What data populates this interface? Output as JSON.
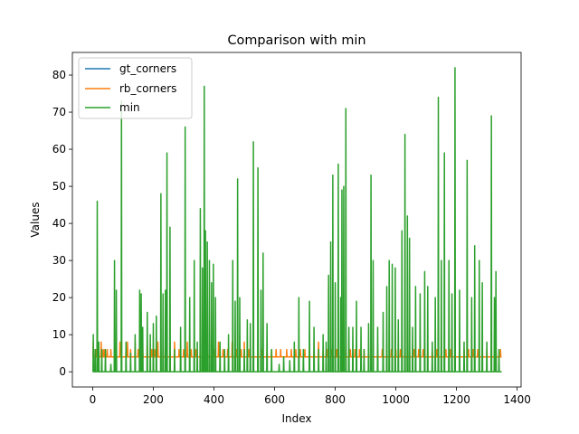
{
  "chart_data": {
    "type": "line",
    "title": "Comparison with min",
    "xlabel": "Index",
    "ylabel": "Values",
    "xlim": [
      -67,
      1413
    ],
    "ylim": [
      -4.1,
      86.1
    ],
    "xticks": [
      0,
      200,
      400,
      600,
      800,
      1000,
      1200,
      1400
    ],
    "yticks": [
      0,
      10,
      20,
      30,
      40,
      50,
      60,
      70,
      80
    ],
    "grid": false,
    "legend_position": "top-left",
    "series": [
      {
        "name": "gt_corners",
        "color": "#1f77b4",
        "n_points": 1350,
        "baseline": 4,
        "spikes": []
      },
      {
        "name": "rb_corners",
        "color": "#ff7f0e",
        "n_points": 1350,
        "baseline": 4,
        "spikes": [
          [
            2,
            8
          ],
          [
            10,
            6
          ],
          [
            20,
            6
          ],
          [
            28,
            8
          ],
          [
            35,
            6
          ],
          [
            40,
            6
          ],
          [
            48,
            6
          ],
          [
            60,
            6
          ],
          [
            75,
            6
          ],
          [
            90,
            8
          ],
          [
            110,
            6
          ],
          [
            115,
            8
          ],
          [
            125,
            6
          ],
          [
            140,
            8
          ],
          [
            150,
            6
          ],
          [
            165,
            6
          ],
          [
            180,
            8
          ],
          [
            195,
            6
          ],
          [
            205,
            6
          ],
          [
            215,
            8
          ],
          [
            225,
            6
          ],
          [
            240,
            8
          ],
          [
            255,
            6
          ],
          [
            270,
            8
          ],
          [
            285,
            6
          ],
          [
            300,
            6
          ],
          [
            312,
            8
          ],
          [
            325,
            6
          ],
          [
            340,
            6
          ],
          [
            355,
            8
          ],
          [
            370,
            6
          ],
          [
            385,
            8
          ],
          [
            400,
            6
          ],
          [
            415,
            8
          ],
          [
            430,
            6
          ],
          [
            445,
            6
          ],
          [
            460,
            8
          ],
          [
            475,
            6
          ],
          [
            490,
            6
          ],
          [
            500,
            8
          ],
          [
            515,
            6
          ],
          [
            530,
            6
          ],
          [
            545,
            8
          ],
          [
            560,
            6
          ],
          [
            575,
            6
          ],
          [
            590,
            6
          ],
          [
            605,
            6
          ],
          [
            620,
            6
          ],
          [
            640,
            6
          ],
          [
            655,
            6
          ],
          [
            670,
            6
          ],
          [
            685,
            6
          ],
          [
            700,
            6
          ],
          [
            715,
            6
          ],
          [
            730,
            6
          ],
          [
            745,
            8
          ],
          [
            760,
            6
          ],
          [
            775,
            6
          ],
          [
            790,
            6
          ],
          [
            805,
            6
          ],
          [
            820,
            6
          ],
          [
            835,
            8
          ],
          [
            850,
            6
          ],
          [
            865,
            6
          ],
          [
            880,
            6
          ],
          [
            895,
            6
          ],
          [
            910,
            6
          ],
          [
            925,
            6
          ],
          [
            940,
            6
          ],
          [
            955,
            6
          ],
          [
            970,
            6
          ],
          [
            985,
            6
          ],
          [
            1000,
            6
          ],
          [
            1015,
            6
          ],
          [
            1030,
            6
          ],
          [
            1045,
            6
          ],
          [
            1060,
            6
          ],
          [
            1075,
            6
          ],
          [
            1090,
            6
          ],
          [
            1105,
            6
          ],
          [
            1120,
            6
          ],
          [
            1135,
            6
          ],
          [
            1150,
            6
          ],
          [
            1165,
            6
          ],
          [
            1180,
            6
          ],
          [
            1195,
            6
          ],
          [
            1210,
            6
          ],
          [
            1225,
            6
          ],
          [
            1240,
            6
          ],
          [
            1255,
            6
          ],
          [
            1270,
            6
          ],
          [
            1285,
            6
          ],
          [
            1300,
            6
          ],
          [
            1315,
            6
          ],
          [
            1330,
            6
          ],
          [
            1345,
            6
          ]
        ]
      },
      {
        "name": "min",
        "color": "#2ca02c",
        "n_points": 1350,
        "baseline": 0,
        "spikes": [
          [
            2,
            10
          ],
          [
            8,
            6
          ],
          [
            15,
            46
          ],
          [
            20,
            8
          ],
          [
            30,
            6
          ],
          [
            42,
            6
          ],
          [
            60,
            2
          ],
          [
            72,
            30
          ],
          [
            78,
            22
          ],
          [
            95,
            73
          ],
          [
            110,
            8
          ],
          [
            125,
            5
          ],
          [
            140,
            10
          ],
          [
            155,
            22
          ],
          [
            160,
            21
          ],
          [
            165,
            12
          ],
          [
            180,
            16
          ],
          [
            190,
            10
          ],
          [
            200,
            13
          ],
          [
            210,
            15
          ],
          [
            225,
            48
          ],
          [
            232,
            21
          ],
          [
            240,
            22
          ],
          [
            245,
            59
          ],
          [
            255,
            39
          ],
          [
            270,
            6
          ],
          [
            290,
            12
          ],
          [
            305,
            66
          ],
          [
            320,
            20
          ],
          [
            335,
            30
          ],
          [
            345,
            8
          ],
          [
            355,
            44
          ],
          [
            362,
            28
          ],
          [
            368,
            77
          ],
          [
            372,
            38
          ],
          [
            378,
            35
          ],
          [
            385,
            30
          ],
          [
            392,
            24
          ],
          [
            398,
            29
          ],
          [
            405,
            20
          ],
          [
            420,
            8
          ],
          [
            435,
            6
          ],
          [
            448,
            10
          ],
          [
            462,
            30
          ],
          [
            470,
            19
          ],
          [
            478,
            52
          ],
          [
            485,
            20
          ],
          [
            500,
            6
          ],
          [
            510,
            14
          ],
          [
            520,
            13
          ],
          [
            530,
            62
          ],
          [
            545,
            55
          ],
          [
            555,
            22
          ],
          [
            562,
            32
          ],
          [
            575,
            13
          ],
          [
            590,
            6
          ],
          [
            615,
            2
          ],
          [
            630,
            4
          ],
          [
            650,
            3
          ],
          [
            665,
            8
          ],
          [
            680,
            20
          ],
          [
            695,
            6
          ],
          [
            715,
            19
          ],
          [
            730,
            12
          ],
          [
            745,
            6
          ],
          [
            760,
            10
          ],
          [
            770,
            8
          ],
          [
            778,
            26
          ],
          [
            785,
            35
          ],
          [
            792,
            53
          ],
          [
            800,
            24
          ],
          [
            810,
            56
          ],
          [
            818,
            20
          ],
          [
            822,
            49
          ],
          [
            828,
            50
          ],
          [
            835,
            71
          ],
          [
            845,
            12
          ],
          [
            858,
            12
          ],
          [
            870,
            19
          ],
          [
            885,
            12
          ],
          [
            895,
            6
          ],
          [
            910,
            13
          ],
          [
            918,
            53
          ],
          [
            925,
            30
          ],
          [
            940,
            12
          ],
          [
            958,
            16
          ],
          [
            970,
            23
          ],
          [
            978,
            30
          ],
          [
            988,
            29
          ],
          [
            998,
            28
          ],
          [
            1008,
            14
          ],
          [
            1020,
            38
          ],
          [
            1030,
            64
          ],
          [
            1038,
            42
          ],
          [
            1045,
            36
          ],
          [
            1055,
            12
          ],
          [
            1065,
            23
          ],
          [
            1080,
            21
          ],
          [
            1095,
            27
          ],
          [
            1105,
            23
          ],
          [
            1120,
            8
          ],
          [
            1130,
            20
          ],
          [
            1140,
            74
          ],
          [
            1150,
            30
          ],
          [
            1160,
            59
          ],
          [
            1175,
            30
          ],
          [
            1185,
            21
          ],
          [
            1195,
            82
          ],
          [
            1210,
            22
          ],
          [
            1225,
            8
          ],
          [
            1235,
            57
          ],
          [
            1250,
            20
          ],
          [
            1260,
            34
          ],
          [
            1275,
            30
          ],
          [
            1285,
            24
          ],
          [
            1300,
            8
          ],
          [
            1315,
            69
          ],
          [
            1325,
            20
          ],
          [
            1330,
            27
          ],
          [
            1340,
            6
          ]
        ]
      }
    ]
  }
}
